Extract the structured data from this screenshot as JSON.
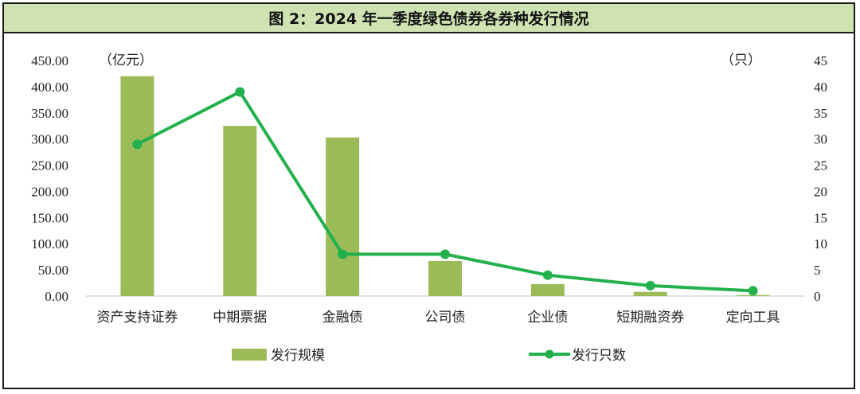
{
  "title": "图 2：2024 年一季度绿色债券各券种发行情况",
  "left_unit": "（亿元）",
  "right_unit": "（只）",
  "colors": {
    "bar": "#9bbb59",
    "line": "#22b14c",
    "title_bg": "#cfe3b2"
  },
  "chart_data": {
    "type": "bar",
    "categories": [
      "资产支持证券",
      "中期票据",
      "金融债",
      "公司债",
      "企业债",
      "短期融资券",
      "定向工具"
    ],
    "series": [
      {
        "name": "发行规模",
        "type": "bar",
        "axis": "left",
        "values": [
          420,
          325,
          303,
          67,
          23,
          8,
          2
        ]
      },
      {
        "name": "发行只数",
        "type": "line",
        "axis": "right",
        "values": [
          29,
          39,
          8,
          8,
          4,
          2,
          1
        ]
      }
    ],
    "ylim_left": [
      0,
      450
    ],
    "yticks_left": [
      "0.00",
      "50.00",
      "100.00",
      "150.00",
      "200.00",
      "250.00",
      "300.00",
      "350.00",
      "400.00",
      "450.00"
    ],
    "ylim_right": [
      0,
      45
    ],
    "yticks_right": [
      "0",
      "5",
      "10",
      "15",
      "20",
      "25",
      "30",
      "35",
      "40",
      "45"
    ],
    "legend_position": "bottom",
    "grid": false
  }
}
